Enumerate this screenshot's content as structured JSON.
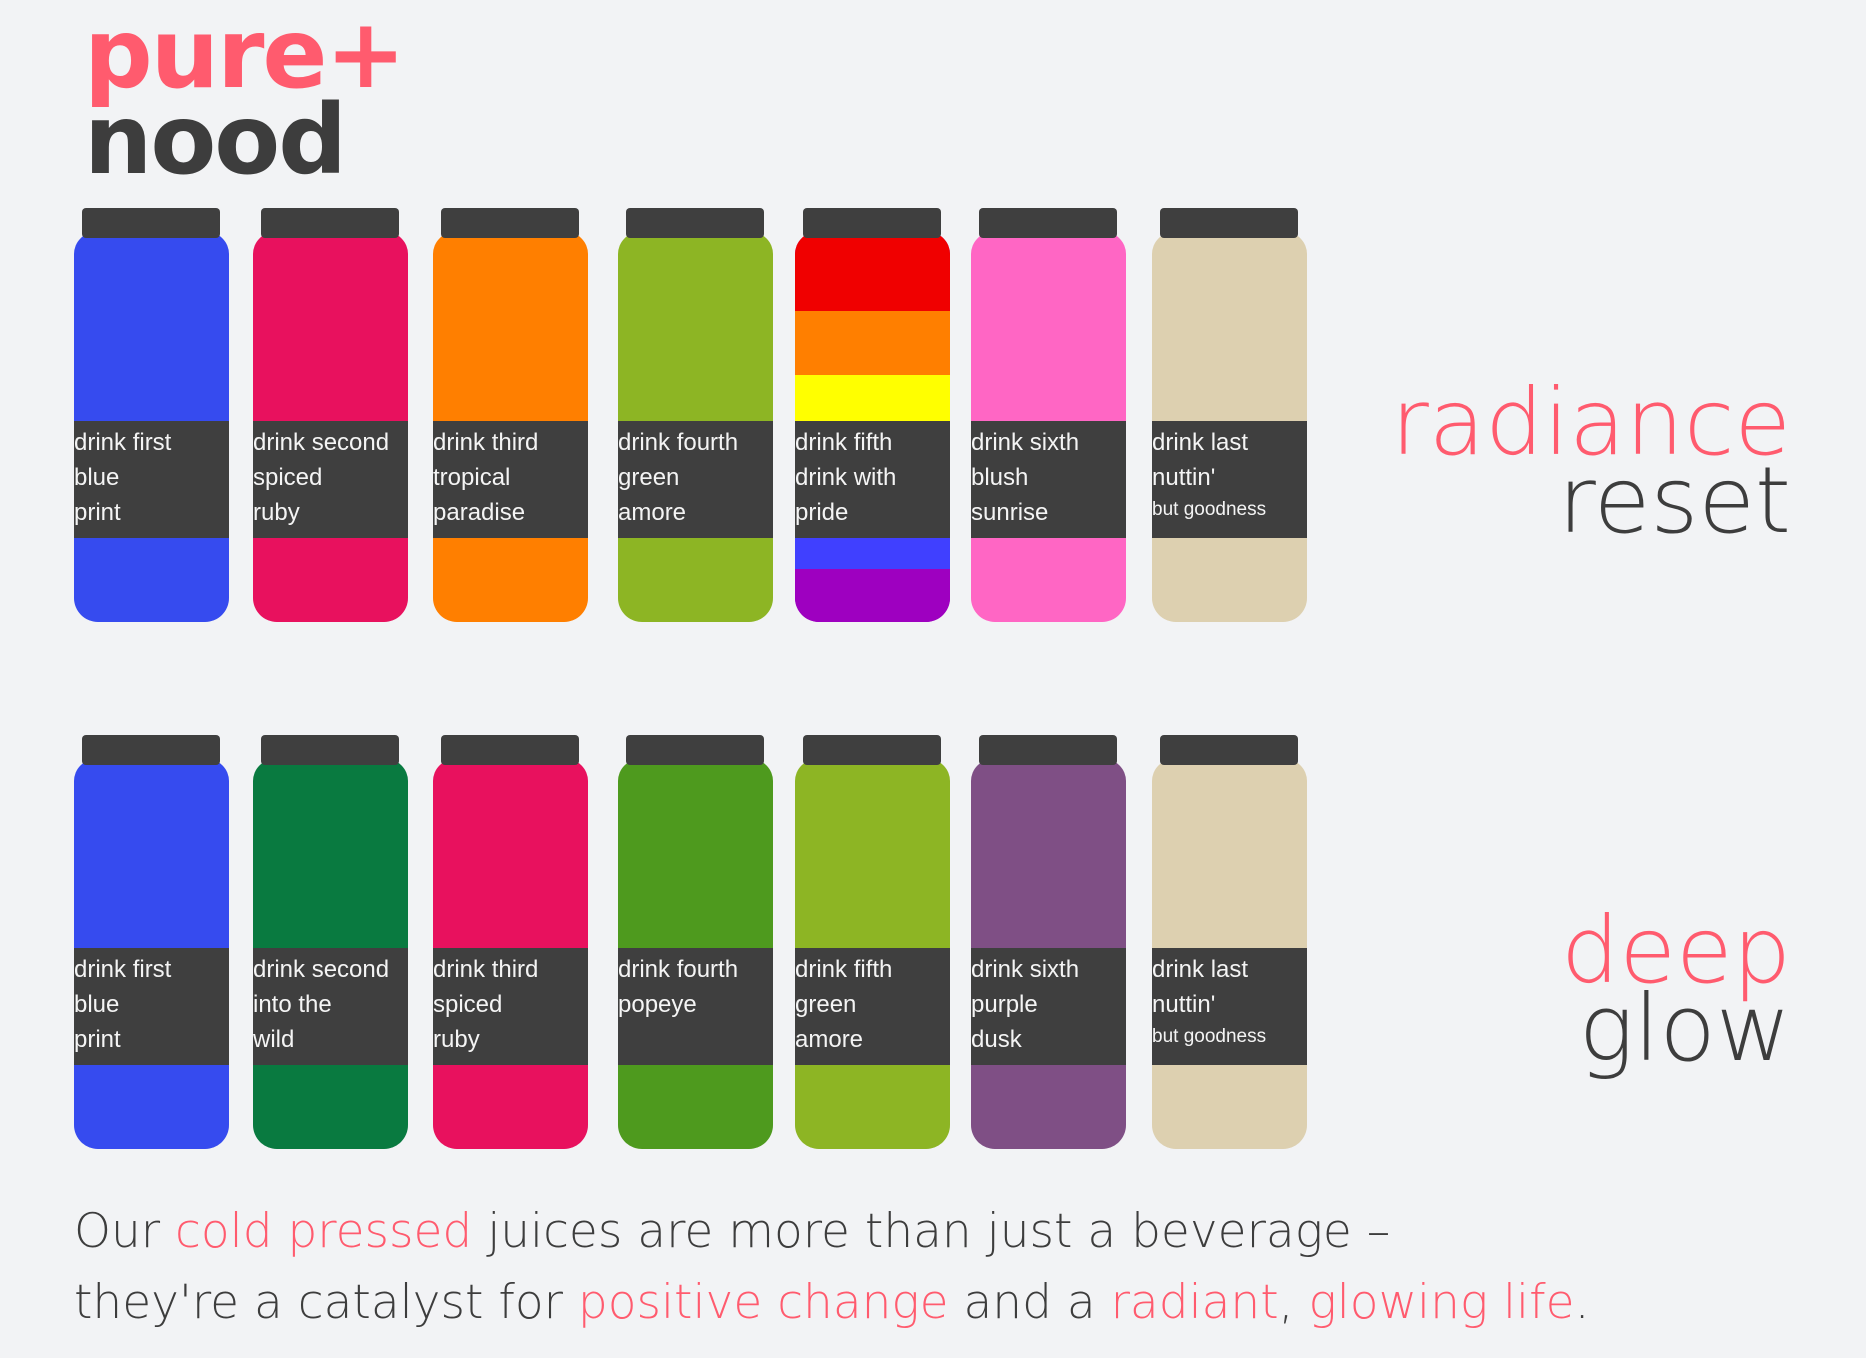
{
  "logo": {
    "line1": "pure+",
    "line2": "nood"
  },
  "rows": [
    {
      "heading": {
        "accent": "radiance",
        "main": "reset"
      },
      "bottles": [
        {
          "label": [
            "drink first",
            "blue",
            "print"
          ],
          "color": "#364bef"
        },
        {
          "label": [
            "drink second",
            "spiced",
            "ruby"
          ],
          "color": "#e8115e"
        },
        {
          "label": [
            "drink third",
            "tropical",
            "paradise"
          ],
          "color": "#ff7f00"
        },
        {
          "label": [
            "drink fourth",
            "green",
            "amore"
          ],
          "color": "#8db524"
        },
        {
          "label": [
            "drink fifth",
            "drink with",
            "pride"
          ],
          "color": "#9e00c0",
          "rainbow": [
            "#f00000",
            "#ff7f00",
            "#ffff00",
            "#4040ff",
            "#9e00c0"
          ]
        },
        {
          "label": [
            "drink sixth",
            "blush",
            "sunrise"
          ],
          "color": "#ff66c4"
        },
        {
          "label": [
            "drink last",
            "nuttin'",
            "but goodness"
          ],
          "color": "#ddd0b0",
          "small_last": true
        }
      ]
    },
    {
      "heading": {
        "accent": "deep",
        "main": "glow"
      },
      "bottles": [
        {
          "label": [
            "drink first",
            "blue",
            "print"
          ],
          "color": "#364bef"
        },
        {
          "label": [
            "drink second",
            "into the",
            "wild"
          ],
          "color": "#097a40"
        },
        {
          "label": [
            "drink third",
            "spiced",
            "ruby"
          ],
          "color": "#e8115e"
        },
        {
          "label": [
            "drink fourth",
            "popeye"
          ],
          "color": "#4e9a1e"
        },
        {
          "label": [
            "drink fifth",
            "green",
            "amore"
          ],
          "color": "#8db524"
        },
        {
          "label": [
            "drink sixth",
            "purple",
            "dusk"
          ],
          "color": "#7f4f85"
        },
        {
          "label": [
            "drink last",
            "nuttin'",
            "but goodness"
          ],
          "color": "#ddd0b0",
          "small_last": true
        }
      ]
    }
  ],
  "tagline": {
    "parts": [
      {
        "text": "Our ",
        "highlight": false
      },
      {
        "text": "cold pressed",
        "highlight": true
      },
      {
        "text": " juices are more than just a beverage –",
        "highlight": false
      },
      {
        "text": "\n",
        "highlight": false
      },
      {
        "text": "they're a catalyst for ",
        "highlight": false
      },
      {
        "text": "positive change",
        "highlight": true
      },
      {
        "text": " and a ",
        "highlight": false
      },
      {
        "text": "radiant",
        "highlight": true
      },
      {
        "text": ", ",
        "highlight": false
      },
      {
        "text": "glowing life",
        "highlight": true
      },
      {
        "text": ".",
        "highlight": false
      }
    ]
  },
  "colors": {
    "accent": "#ff5b6e",
    "text": "#3d3d3d",
    "label_bg": "#3f3f3f",
    "background": "#f2f3f5"
  }
}
